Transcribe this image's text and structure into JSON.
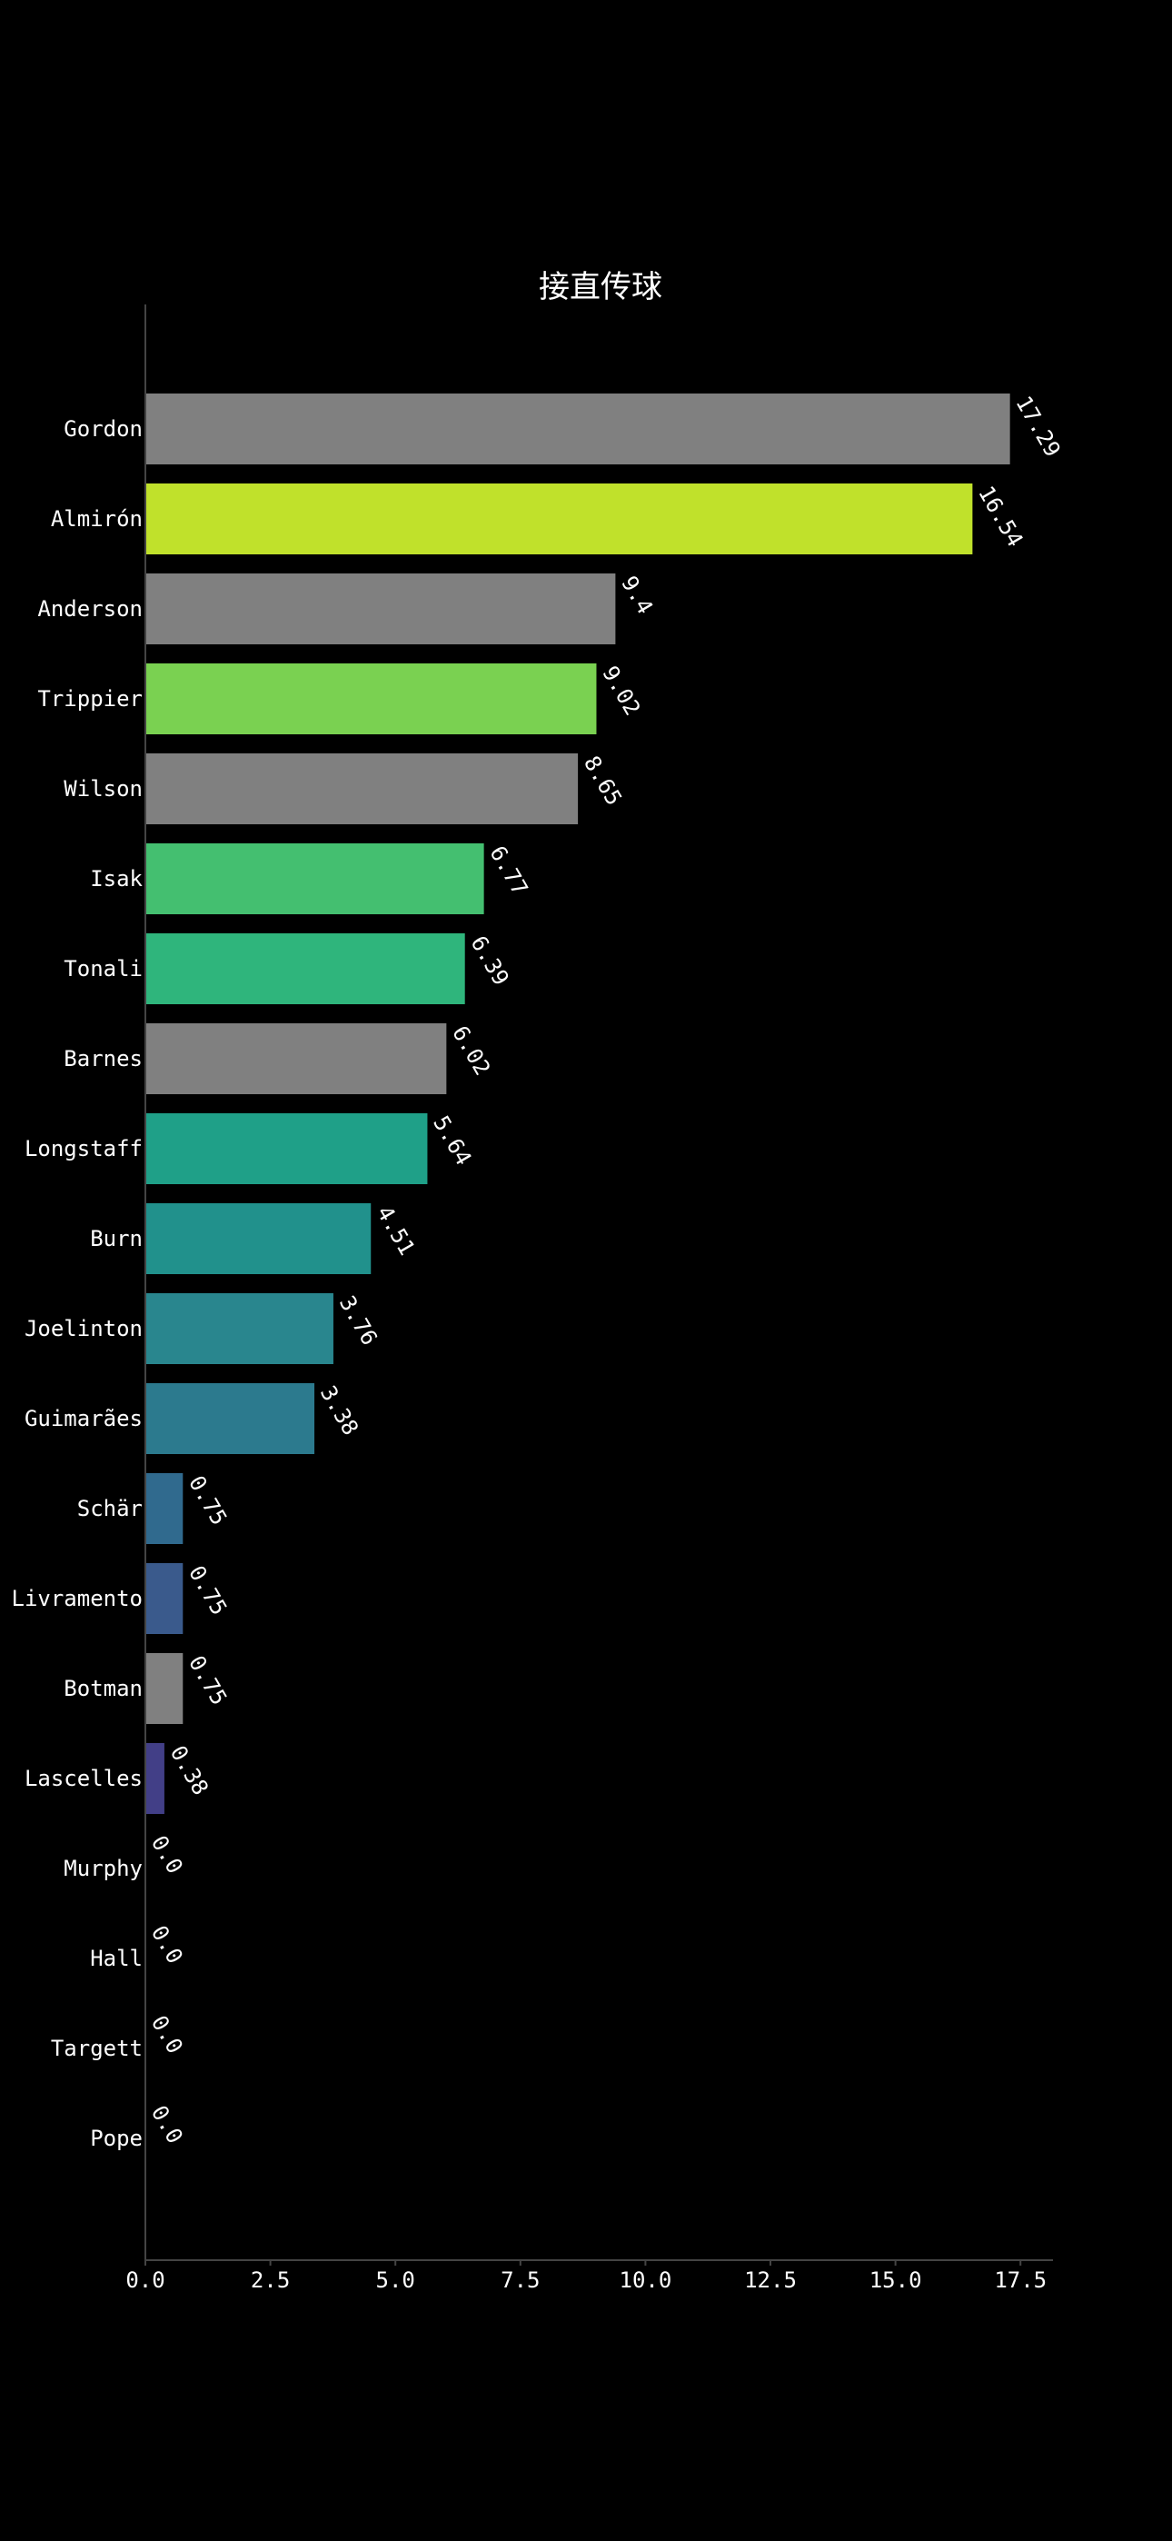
{
  "chart_data": {
    "type": "bar",
    "orientation": "horizontal",
    "title": "接直传球",
    "xlabel": "",
    "ylabel": "",
    "xlim": [
      0,
      18.15
    ],
    "xticks": [
      "0.0",
      "2.5",
      "5.0",
      "7.5",
      "10.0",
      "12.5",
      "15.0",
      "17.5"
    ],
    "grid": false,
    "legend": "none",
    "background": "#000000",
    "axis_color": "#444444",
    "categories": [
      "Gordon",
      "Almirón",
      "Anderson",
      "Trippier",
      "Wilson",
      "Isak",
      "Tonali",
      "Barnes",
      "Longstaff",
      "Burn",
      "Joelinton",
      "Guimarães",
      "Schär",
      "Livramento",
      "Botman",
      "Lascelles",
      "Murphy",
      "Hall",
      "Targett",
      "Pope"
    ],
    "values": [
      17.29,
      16.54,
      9.4,
      9.02,
      8.65,
      6.77,
      6.39,
      6.02,
      5.64,
      4.51,
      3.76,
      3.38,
      0.75,
      0.75,
      0.75,
      0.38,
      0.0,
      0.0,
      0.0,
      0.0
    ],
    "value_labels": [
      "17.29",
      "16.54",
      "9.4",
      "9.02",
      "8.65",
      "6.77",
      "6.39",
      "6.02",
      "5.64",
      "4.51",
      "3.76",
      "3.38",
      "0.75",
      "0.75",
      "0.75",
      "0.38",
      "0.0",
      "0.0",
      "0.0",
      "0.0"
    ],
    "colors": [
      "#808080",
      "#c0e12b",
      "#808080",
      "#7ad151",
      "#808080",
      "#44bf70",
      "#2fb57c",
      "#808080",
      "#1fa088",
      "#21918c",
      "#29868e",
      "#2c7a8e",
      "#306a8e",
      "#3a5a8c",
      "#808080",
      "#423f87",
      "#808080",
      "#808080",
      "#808080",
      "#808080"
    ]
  }
}
